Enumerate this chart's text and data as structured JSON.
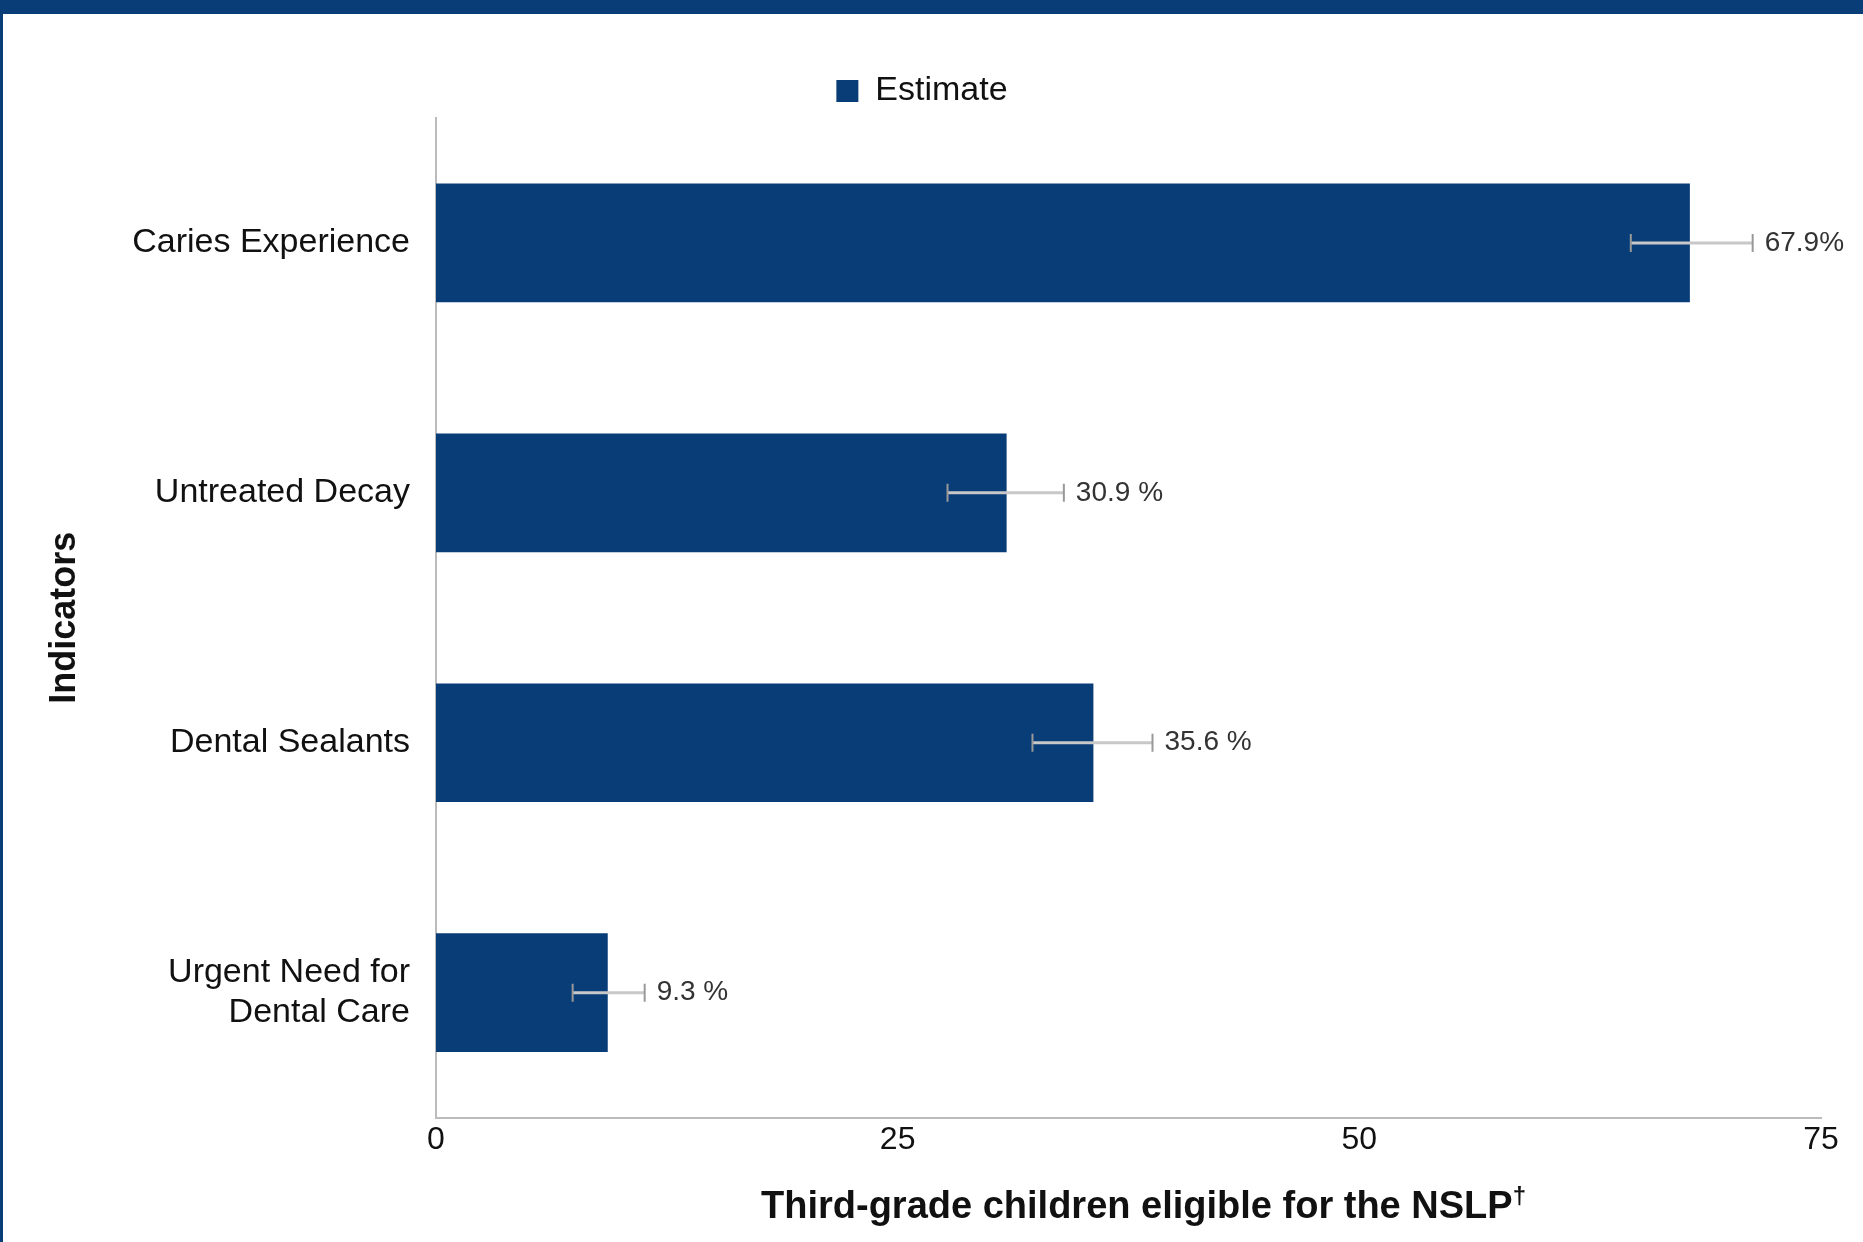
{
  "chart_data": {
    "type": "bar",
    "orientation": "horizontal",
    "xlabel": "Third-grade children eligible for the NSLP$^{†}$",
    "ylabel": "Indicators",
    "categories": [
      "Caries Experience",
      "Untreated Decay",
      "Dental Sealants",
      "Urgent Need for Dental Care"
    ],
    "series": [
      {
        "name": "Estimate",
        "color": "#083d77",
        "values": [
          67.9,
          30.9,
          35.6,
          9.3
        ],
        "errors": [
          [
            64.7,
            71.3
          ],
          [
            27.7,
            34.0
          ],
          [
            32.3,
            38.8
          ],
          [
            7.4,
            11.3
          ]
        ],
        "value_labels": [
          "67.9%",
          "30.9 %",
          "35.6 %",
          "9.3 %"
        ]
      }
    ],
    "xlim": [
      0,
      75
    ],
    "xticks": [
      0,
      25,
      50,
      75
    ],
    "grid": false,
    "legend": "top"
  }
}
